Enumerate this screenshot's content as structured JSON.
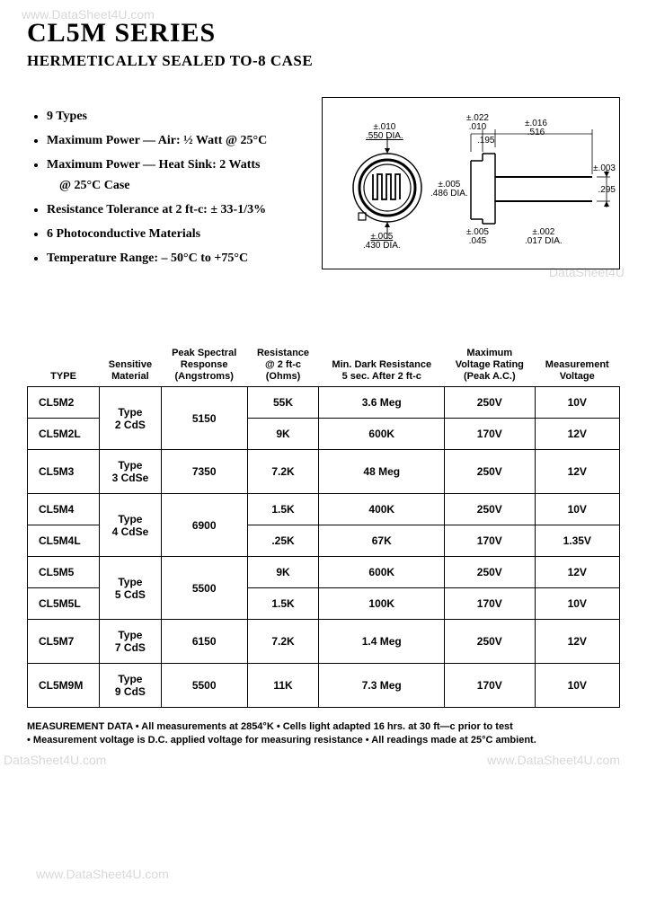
{
  "watermarks": {
    "top_left": "www.DataSheet4U.com",
    "right": "DataSheet4U",
    "bottom_left": "DataSheet4U.com",
    "bottom_right": "www.DataSheet4U.com",
    "footer": "www.DataSheet4U.com"
  },
  "header": {
    "title": "CL5M SERIES",
    "subtitle": "HERMETICALLY SEALED TO-8 CASE"
  },
  "bullets": [
    "9 Types",
    "Maximum Power — Air: ½ Watt @ 25°C",
    "Maximum Power — Heat Sink: 2 Watts",
    "@ 25°C Case",
    "Resistance Tolerance at 2 ft-c: ± 33-1/3%",
    "6 Photoconductive Materials",
    "Temperature Range: – 50°C to +75°C"
  ],
  "diagram": {
    "labels": {
      "top_tol1": "±.010",
      "dia1": ".550 DIA.",
      "top_tol2": "±.022",
      "len1": ".010",
      "len2": ".195",
      "top_tol3": "±.016",
      "len3": ".516",
      "tol4": "±.005",
      "dia2": ".486 DIA.",
      "tol5": "±.003",
      "len5": ".295",
      "tol6": "±.005",
      "dia3": ".430 DIA.",
      "tol7": "±.005",
      "len7": ".045",
      "tol8": "±.002",
      "dia4": ".017 DIA."
    }
  },
  "table": {
    "headers": [
      "TYPE",
      "Sensitive Material",
      "Peak Spectral Response (Angstroms)",
      "Resistance @ 2 ft-c (Ohms)",
      "Min. Dark Resistance 5 sec. After 2 ft-c",
      "Maximum Voltage Rating (Peak A.C.)",
      "Measurement Voltage"
    ],
    "rows": [
      {
        "type": "CL5M2",
        "mat": "Type 2 CdS",
        "psr": "5150",
        "res": "55K",
        "dark": "3.6 Meg",
        "vmax": "250V",
        "mv": "10V",
        "group": 2
      },
      {
        "type": "CL5M2L",
        "mat": "",
        "psr": "",
        "res": "9K",
        "dark": "600K",
        "vmax": "170V",
        "mv": "12V",
        "group": 0
      },
      {
        "type": "CL5M3",
        "mat": "Type 3 CdSe",
        "psr": "7350",
        "res": "7.2K",
        "dark": "48 Meg",
        "vmax": "250V",
        "mv": "12V",
        "group": 1
      },
      {
        "type": "CL5M4",
        "mat": "Type 4 CdSe",
        "psr": "6900",
        "res": "1.5K",
        "dark": "400K",
        "vmax": "250V",
        "mv": "10V",
        "group": 2
      },
      {
        "type": "CL5M4L",
        "mat": "",
        "psr": "",
        "res": ".25K",
        "dark": "67K",
        "vmax": "170V",
        "mv": "1.35V",
        "group": 0
      },
      {
        "type": "CL5M5",
        "mat": "Type 5 CdS",
        "psr": "5500",
        "res": "9K",
        "dark": "600K",
        "vmax": "250V",
        "mv": "12V",
        "group": 2
      },
      {
        "type": "CL5M5L",
        "mat": "",
        "psr": "",
        "res": "1.5K",
        "dark": "100K",
        "vmax": "170V",
        "mv": "10V",
        "group": 0
      },
      {
        "type": "CL5M7",
        "mat": "Type 7 CdS",
        "psr": "6150",
        "res": "7.2K",
        "dark": "1.4 Meg",
        "vmax": "250V",
        "mv": "12V",
        "group": 1
      },
      {
        "type": "CL5M9M",
        "mat": "Type 9 CdS",
        "psr": "5500",
        "res": "11K",
        "dark": "7.3 Meg",
        "vmax": "170V",
        "mv": "10V",
        "group": 1
      }
    ]
  },
  "footnote": {
    "heading": "MEASUREMENT DATA",
    "line1": "All measurements at 2854°K • Cells light adapted 16 hrs. at 30 ft—c prior to test",
    "line2": "• Measurement voltage is D.C. applied voltage for measuring resistance • All readings made at 25°C ambient."
  },
  "colors": {
    "text": "#000000",
    "bg": "#ffffff",
    "watermark": "#d8d8d8",
    "border": "#000000"
  }
}
